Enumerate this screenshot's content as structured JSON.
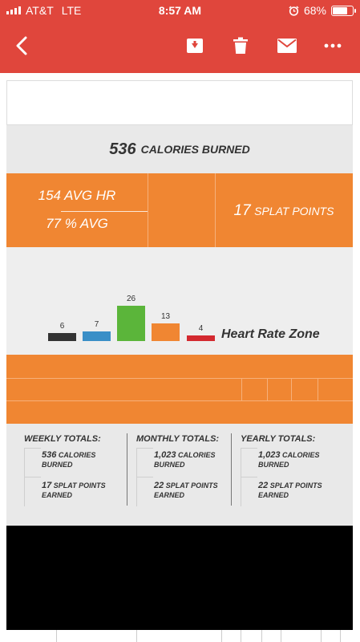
{
  "status_bar": {
    "carrier": "AT&T",
    "network": "LTE",
    "time": "8:57 AM",
    "battery": "68%",
    "battery_level": 0.68
  },
  "toolbar": {
    "back_icon": "chevron-left-icon",
    "archive_icon": "archive-icon",
    "delete_icon": "trash-icon",
    "mail_icon": "envelope-icon",
    "more_icon": "more-dots-icon"
  },
  "colors": {
    "header_red": "#e0463c",
    "orange": "#f08632",
    "panel_gray": "#e9e9e9"
  },
  "summary": {
    "calories_value": "536",
    "calories_label": "CALORIES BURNED"
  },
  "stats": {
    "avg_hr": "154 AVG HR",
    "avg_pct": "77 % AVG",
    "splat_value": "17",
    "splat_label": "SPLAT POINTS"
  },
  "chart_data": {
    "type": "bar",
    "title": "Heart Rate Zone",
    "categories": [
      "zone-1",
      "zone-2",
      "zone-3",
      "zone-4",
      "zone-5"
    ],
    "values": [
      6,
      7,
      26,
      13,
      4
    ],
    "colors": [
      "#333333",
      "#3a8fc7",
      "#5bb53a",
      "#f08632",
      "#d3292f"
    ]
  },
  "totals": {
    "weekly": {
      "title": "WEEKLY TOTALS:",
      "calories": "536",
      "calories_label": "CALORIES",
      "burned": "BURNED",
      "splat": "17",
      "splat_label": "SPLAT POINTS",
      "earned": "EARNED"
    },
    "monthly": {
      "title": "MONTHLY TOTALS:",
      "calories": "1,023",
      "calories_label": "CALORIES",
      "burned": "BURNED",
      "splat": "22",
      "splat_label": "SPLAT POINTS",
      "earned": "EARNED"
    },
    "yearly": {
      "title": "YEARLY TOTALS:",
      "calories": "1,023",
      "calories_label": "CALORIES",
      "burned": "BURNED",
      "splat": "22",
      "splat_label": "SPLAT POINTS",
      "earned": "EARNED"
    }
  }
}
